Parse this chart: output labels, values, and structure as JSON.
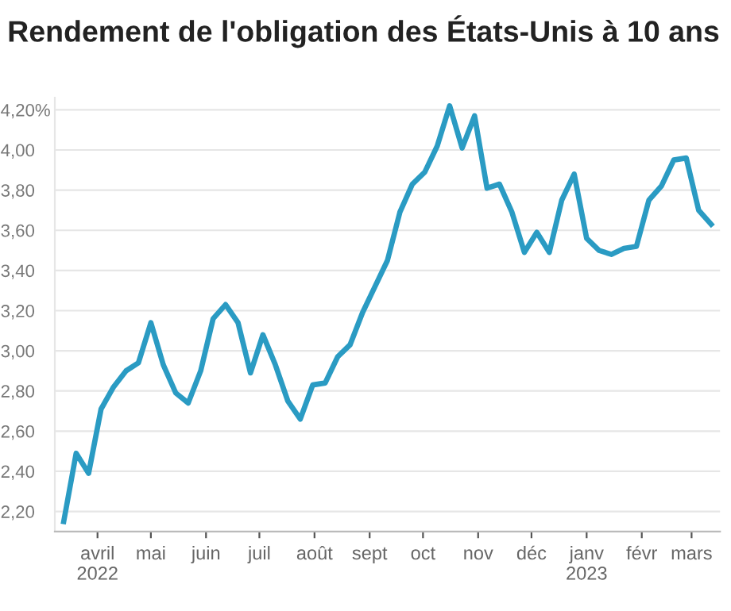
{
  "chart_data": {
    "type": "line",
    "title": "Rendement de l'obligation des États-Unis à 10 ans",
    "x": [
      "2022-03-13",
      "2022-03-20",
      "2022-03-27",
      "2022-04-03",
      "2022-04-10",
      "2022-04-17",
      "2022-04-24",
      "2022-05-01",
      "2022-05-08",
      "2022-05-15",
      "2022-05-22",
      "2022-05-29",
      "2022-06-05",
      "2022-06-12",
      "2022-06-19",
      "2022-06-26",
      "2022-07-03",
      "2022-07-10",
      "2022-07-17",
      "2022-07-24",
      "2022-07-31",
      "2022-08-07",
      "2022-08-14",
      "2022-08-21",
      "2022-08-28",
      "2022-09-04",
      "2022-09-11",
      "2022-09-18",
      "2022-09-25",
      "2022-10-02",
      "2022-10-09",
      "2022-10-16",
      "2022-10-23",
      "2022-10-30",
      "2022-11-06",
      "2022-11-13",
      "2022-11-20",
      "2022-11-27",
      "2022-12-04",
      "2022-12-11",
      "2022-12-18",
      "2022-12-25",
      "2023-01-01",
      "2023-01-08",
      "2023-01-15",
      "2023-01-22",
      "2023-01-29",
      "2023-02-05",
      "2023-02-12",
      "2023-02-19",
      "2023-02-26",
      "2023-03-05",
      "2023-03-12"
    ],
    "series": [
      {
        "color": "#2a9bc3",
        "values": [
          2.15,
          2.49,
          2.39,
          2.71,
          2.82,
          2.9,
          2.94,
          3.14,
          2.93,
          2.79,
          2.74,
          2.9,
          3.16,
          3.23,
          3.14,
          2.89,
          3.08,
          2.93,
          2.75,
          2.66,
          2.83,
          2.84,
          2.97,
          3.03,
          3.19,
          3.32,
          3.45,
          3.69,
          3.83,
          3.89,
          4.02,
          4.22,
          4.01,
          4.17,
          3.81,
          3.83,
          3.69,
          3.49,
          3.59,
          3.49,
          3.75,
          3.88,
          3.56,
          3.5,
          3.48,
          3.51,
          3.52,
          3.75,
          3.82,
          3.95,
          3.96,
          3.7,
          3.63
        ]
      }
    ],
    "xlim": [
      "2022-03-08",
      "2023-03-17"
    ],
    "xticks": [
      {
        "value": "2022-04-01",
        "label": "avril\n2022"
      },
      {
        "value": "2022-05-01",
        "label": "mai"
      },
      {
        "value": "2022-06-01",
        "label": "juin"
      },
      {
        "value": "2022-07-01",
        "label": "juil"
      },
      {
        "value": "2022-08-01",
        "label": "août"
      },
      {
        "value": "2022-09-01",
        "label": "sept"
      },
      {
        "value": "2022-10-01",
        "label": "oct"
      },
      {
        "value": "2022-11-01",
        "label": "nov"
      },
      {
        "value": "2022-12-01",
        "label": "déc"
      },
      {
        "value": "2023-01-01",
        "label": "janv\n2023"
      },
      {
        "value": "2023-02-01",
        "label": "févr"
      },
      {
        "value": "2023-03-01",
        "label": "mars"
      }
    ],
    "ylim": [
      2.1,
      4.26
    ],
    "yticks": [
      {
        "value": 2.2,
        "label": "2,20"
      },
      {
        "value": 2.4,
        "label": "2,40"
      },
      {
        "value": 2.6,
        "label": "2,60"
      },
      {
        "value": 2.8,
        "label": "2,80"
      },
      {
        "value": 3.0,
        "label": "3,00"
      },
      {
        "value": 3.2,
        "label": "3,20"
      },
      {
        "value": 3.4,
        "label": "3,40"
      },
      {
        "value": 3.6,
        "label": "3,60"
      },
      {
        "value": 3.8,
        "label": "3,80"
      },
      {
        "value": 4.0,
        "label": "4,00"
      },
      {
        "value": 4.2,
        "label": "4,20%"
      }
    ],
    "grid": "y",
    "marker": "none",
    "line_style": "solid"
  }
}
